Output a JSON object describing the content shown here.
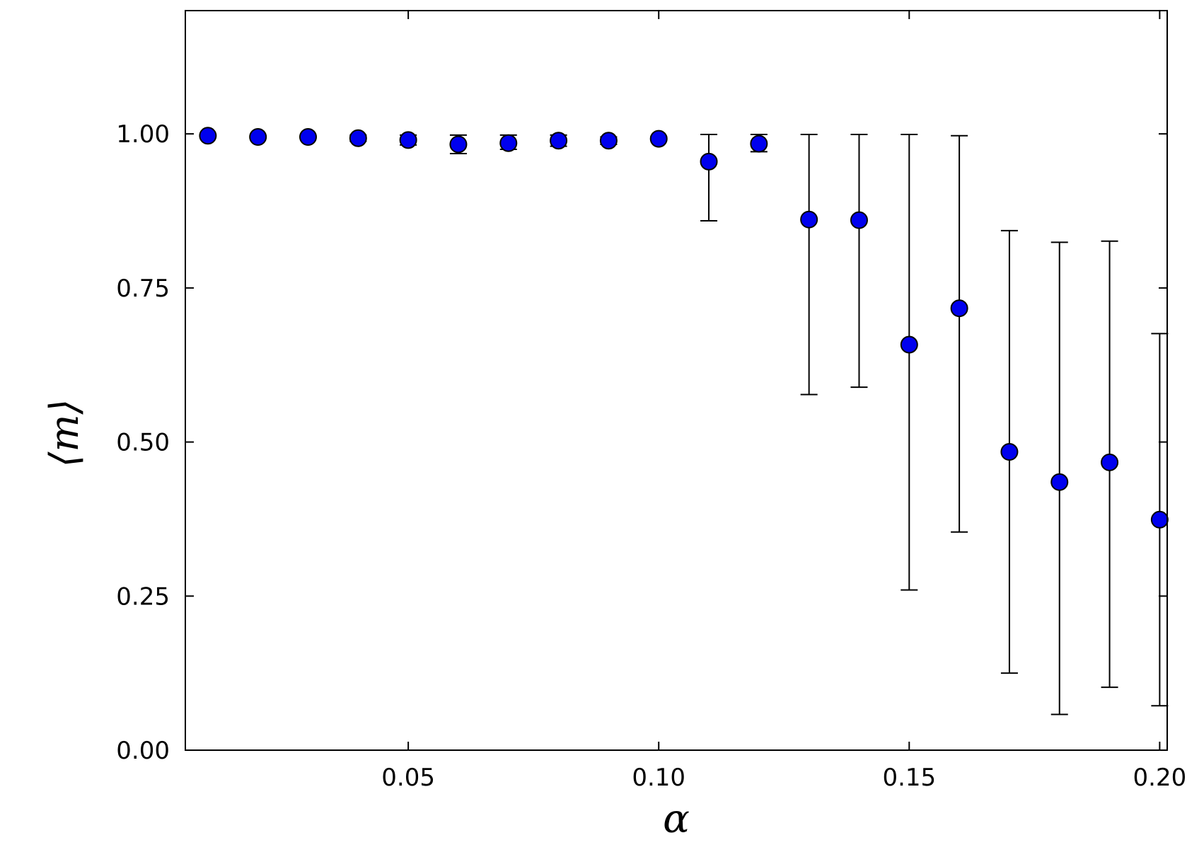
{
  "chart_data": {
    "type": "scatter",
    "xlabel": "α",
    "ylabel": "⟨m⟩",
    "xlim": [
      0.0055,
      0.2015
    ],
    "ylim": [
      0.0,
      1.2
    ],
    "x_ticks": [
      0.05,
      0.1,
      0.15,
      0.2
    ],
    "x_tick_labels": [
      "0.05",
      "0.10",
      "0.15",
      "0.20"
    ],
    "y_ticks": [
      0.0,
      0.25,
      0.5,
      0.75,
      1.0
    ],
    "y_tick_labels": [
      "0.00",
      "0.25",
      "0.50",
      "0.75",
      "1.00"
    ],
    "grid": false,
    "marker_color": "#0000ee",
    "marker_edge_color": "#000000",
    "errorbar_color": "#000000",
    "series": [
      {
        "x": [
          0.01,
          0.02,
          0.03,
          0.04,
          0.05,
          0.06,
          0.07,
          0.08,
          0.09,
          0.1,
          0.11,
          0.12,
          0.13,
          0.14,
          0.15,
          0.16,
          0.17,
          0.18,
          0.19,
          0.2
        ],
        "y": [
          0.997,
          0.995,
          0.995,
          0.993,
          0.99,
          0.983,
          0.985,
          0.989,
          0.989,
          0.992,
          0.955,
          0.984,
          0.861,
          0.86,
          0.658,
          0.717,
          0.484,
          0.435,
          0.467,
          0.374
        ],
        "y_low": [
          0.997,
          0.995,
          0.995,
          0.988,
          0.982,
          0.968,
          0.975,
          0.98,
          0.983,
          0.99,
          0.859,
          0.971,
          0.577,
          0.589,
          0.26,
          0.354,
          0.125,
          0.058,
          0.102,
          0.072
        ],
        "y_high": [
          0.997,
          0.995,
          0.995,
          0.998,
          0.998,
          0.998,
          0.998,
          0.998,
          0.995,
          0.995,
          0.999,
          0.999,
          0.999,
          0.999,
          0.999,
          0.997,
          0.843,
          0.824,
          0.826,
          0.676
        ]
      }
    ]
  }
}
